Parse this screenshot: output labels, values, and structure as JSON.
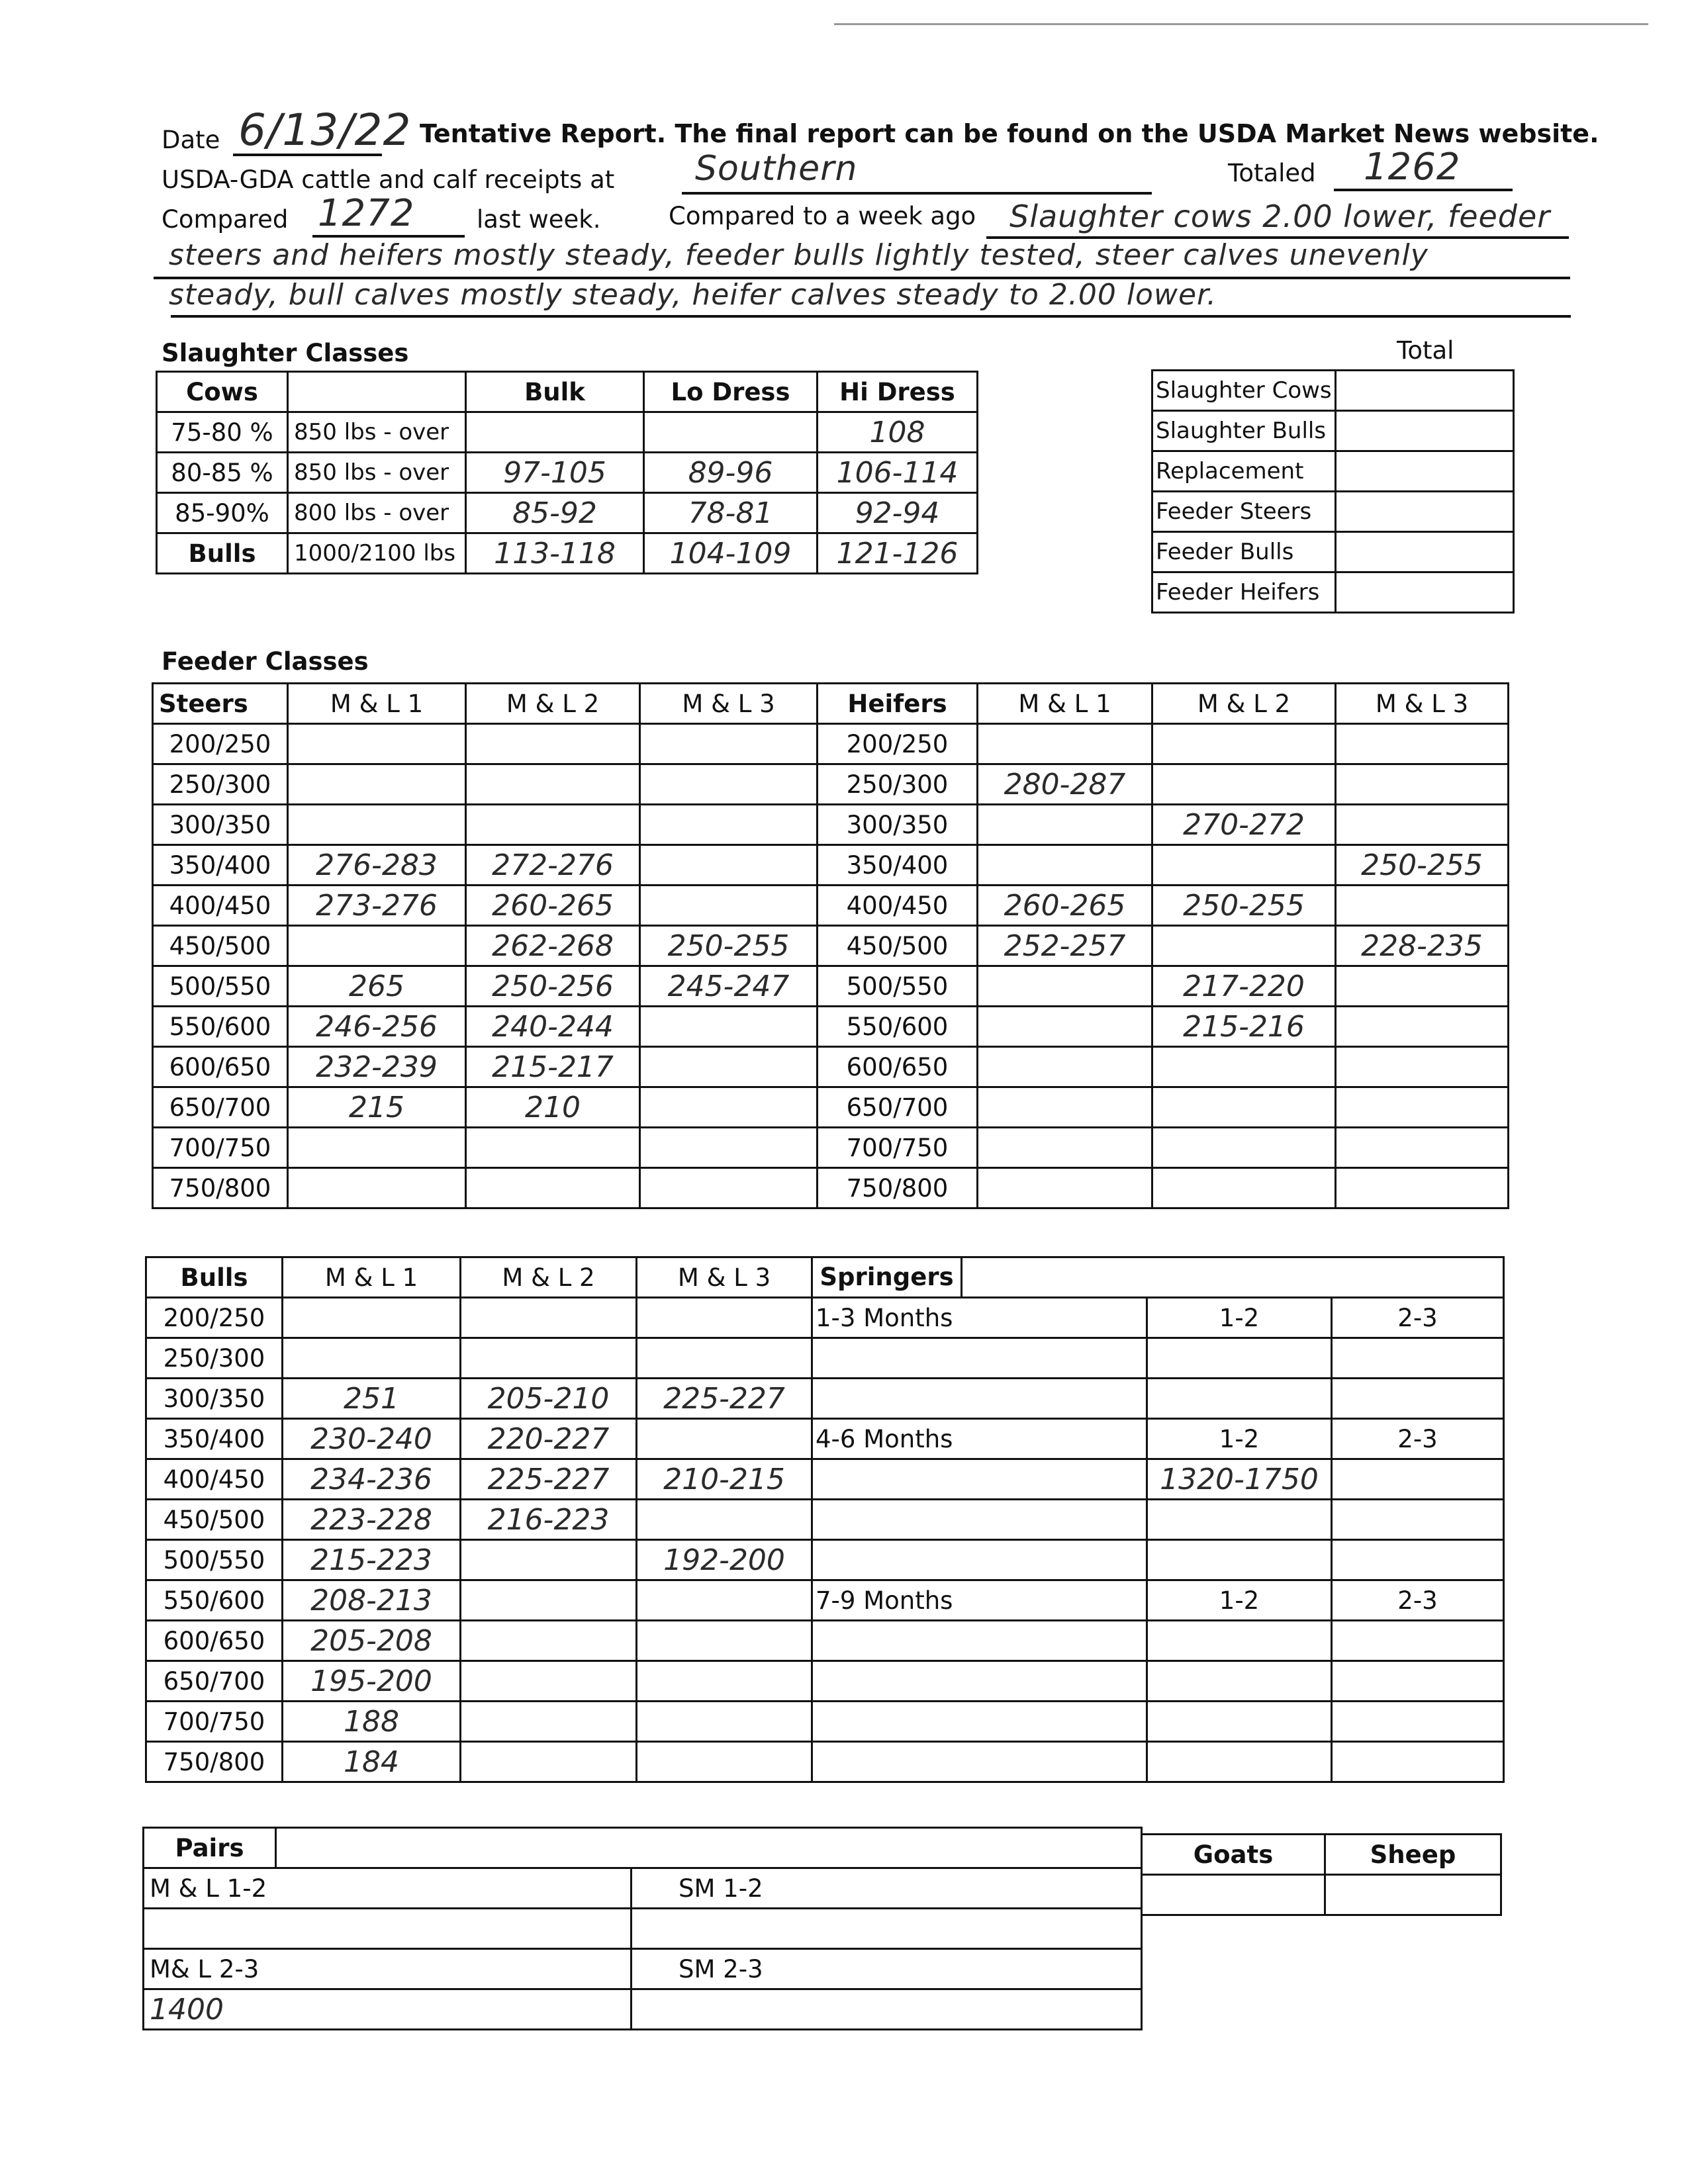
{
  "header": {
    "date_label": "Date",
    "date_value": "6/13/22",
    "notice": "Tentative Report. The final report can be found on the USDA Market News website.",
    "receipts_label": "USDA-GDA cattle and calf receipts at",
    "market": "Southern",
    "totaled_label": "Totaled",
    "totaled_value": "1262",
    "compared_label": "Compared",
    "compared_value": "1272",
    "last_week_label": "last week.",
    "week_ago_label": "Compared to a week ago",
    "comment_lines": [
      "Slaughter cows 2.00 lower, feeder",
      "steers and heifers mostly steady, feeder bulls lightly tested, steer calves unevenly",
      "steady, bull calves mostly steady, heifer calves steady to 2.00 lower."
    ]
  },
  "slaughter": {
    "title": "Slaughter Classes",
    "headers": [
      "Cows",
      "",
      "Bulk",
      "Lo Dress",
      "Hi Dress"
    ],
    "rows": [
      [
        "75-80 %",
        "850 lbs - over",
        "",
        "",
        "108"
      ],
      [
        "80-85 %",
        "850 lbs - over",
        "97-105",
        "89-96",
        "106-114"
      ],
      [
        "85-90%",
        "800 lbs - over",
        "85-92",
        "78-81",
        "92-94"
      ],
      [
        "Bulls",
        "1000/2100 lbs",
        "113-118",
        "104-109",
        "121-126"
      ]
    ]
  },
  "totals": {
    "title": "Total",
    "rows": [
      [
        "Slaughter Cows",
        ""
      ],
      [
        "Slaughter Bulls",
        ""
      ],
      [
        "Replacement",
        ""
      ],
      [
        "Feeder Steers",
        ""
      ],
      [
        "Feeder Bulls",
        ""
      ],
      [
        "Feeder Heifers",
        ""
      ]
    ]
  },
  "feeder": {
    "title": "Feeder Classes",
    "headers": [
      "Steers",
      "M & L 1",
      "M & L 2",
      "M & L 3",
      "Heifers",
      "M & L 1",
      "M & L 2",
      "M & L 3"
    ],
    "rows": [
      [
        "200/250",
        "",
        "",
        "",
        "200/250",
        "",
        "",
        ""
      ],
      [
        "250/300",
        "",
        "",
        "",
        "250/300",
        "280-287",
        "",
        ""
      ],
      [
        "300/350",
        "",
        "",
        "",
        "300/350",
        "",
        "270-272",
        ""
      ],
      [
        "350/400",
        "276-283",
        "272-276",
        "",
        "350/400",
        "",
        "",
        "250-255"
      ],
      [
        "400/450",
        "273-276",
        "260-265",
        "",
        "400/450",
        "260-265",
        "250-255",
        ""
      ],
      [
        "450/500",
        "",
        "262-268",
        "250-255",
        "450/500",
        "252-257",
        "",
        "228-235"
      ],
      [
        "500/550",
        "265",
        "250-256",
        "245-247",
        "500/550",
        "",
        "217-220",
        ""
      ],
      [
        "550/600",
        "246-256",
        "240-244",
        "",
        "550/600",
        "",
        "215-216",
        ""
      ],
      [
        "600/650",
        "232-239",
        "215-217",
        "",
        "600/650",
        "",
        "",
        ""
      ],
      [
        "650/700",
        "215",
        "210",
        "",
        "650/700",
        "",
        "",
        ""
      ],
      [
        "700/750",
        "",
        "",
        "",
        "700/750",
        "",
        "",
        ""
      ],
      [
        "750/800",
        "",
        "",
        "",
        "750/800",
        "",
        "",
        ""
      ]
    ]
  },
  "bulls": {
    "headers": [
      "Bulls",
      "M & L 1",
      "M & L 2",
      "M & L 3",
      "Springers"
    ],
    "rows": [
      [
        "200/250",
        "",
        "",
        "",
        "1-3 Months",
        "1-2",
        "2-3"
      ],
      [
        "250/300",
        "",
        "",
        "",
        "",
        "",
        ""
      ],
      [
        "300/350",
        "251",
        "205-210",
        "225-227",
        "",
        "",
        ""
      ],
      [
        "350/400",
        "230-240",
        "220-227",
        "",
        "4-6 Months",
        "1-2",
        "2-3"
      ],
      [
        "400/450",
        "234-236",
        "225-227",
        "210-215",
        "",
        "1320-1750",
        ""
      ],
      [
        "450/500",
        "223-228",
        "216-223",
        "",
        "",
        "",
        ""
      ],
      [
        "500/550",
        "215-223",
        "",
        "192-200",
        "",
        "",
        ""
      ],
      [
        "550/600",
        "208-213",
        "",
        "",
        "7-9 Months",
        "1-2",
        "2-3"
      ],
      [
        "600/650",
        "205-208",
        "",
        "",
        "",
        "",
        ""
      ],
      [
        "650/700",
        "195-200",
        "",
        "",
        "",
        "",
        ""
      ],
      [
        "700/750",
        "188",
        "",
        "",
        "",
        "",
        ""
      ],
      [
        "750/800",
        "184",
        "",
        "",
        "",
        "",
        ""
      ]
    ]
  },
  "pairs": {
    "title": "Pairs",
    "ml_1_2": "M & L 1-2",
    "sm_1_2": "SM 1-2",
    "ml_2_3": "M& L 2-3",
    "sm_2_3": "SM 2-3",
    "ml_2_3_value": "1400"
  },
  "other": {
    "goats": "Goats",
    "sheep": "Sheep"
  }
}
